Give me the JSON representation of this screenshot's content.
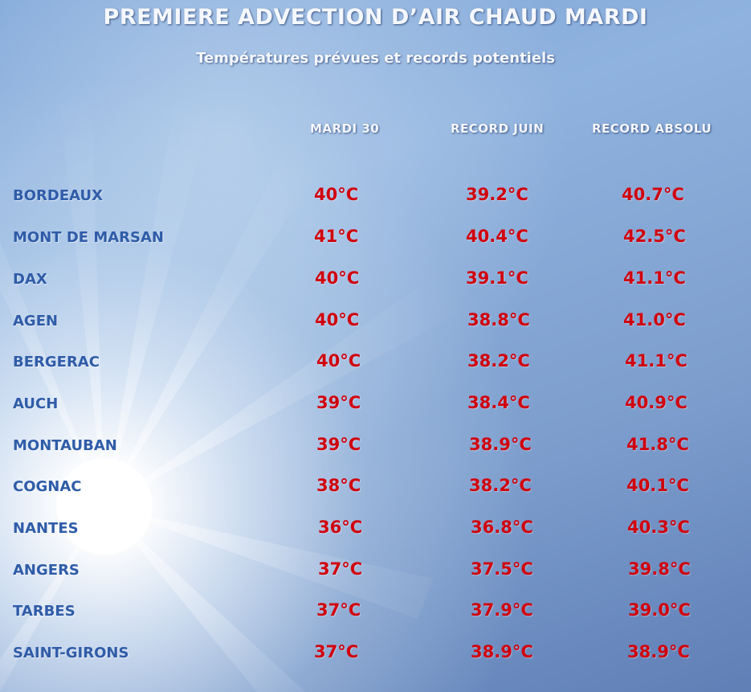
{
  "title": "PREMIERE ADVECTION D’AIR CHAUD MARDI",
  "subtitle": "Températures prévues et records potentiels",
  "columns": [
    "MARDI 30",
    "RECORD JUIN",
    "RECORD ABSOLU"
  ],
  "colors": {
    "title": "#f4f7fc",
    "city": "#2f5ca8",
    "value": "#d0000d"
  },
  "background_icon": "sun-glare",
  "rows": [
    {
      "city": "BORDEAUX",
      "mardi": "40°C",
      "record_juin": "39.2°C",
      "record_absolu": "40.7°C"
    },
    {
      "city": "MONT DE MARSAN",
      "mardi": "41°C",
      "record_juin": "40.4°C",
      "record_absolu": "42.5°C"
    },
    {
      "city": "DAX",
      "mardi": "40°C",
      "record_juin": "39.1°C",
      "record_absolu": "41.1°C"
    },
    {
      "city": "AGEN",
      "mardi": "40°C",
      "record_juin": "38.8°C",
      "record_absolu": "41.0°C"
    },
    {
      "city": "BERGERAC",
      "mardi": "40°C",
      "record_juin": "38.2°C",
      "record_absolu": "41.1°C"
    },
    {
      "city": "AUCH",
      "mardi": "39°C",
      "record_juin": "38.4°C",
      "record_absolu": "40.9°C"
    },
    {
      "city": "MONTAUBAN",
      "mardi": "39°C",
      "record_juin": "38.9°C",
      "record_absolu": "41.8°C"
    },
    {
      "city": "COGNAC",
      "mardi": "38°C",
      "record_juin": "38.2°C",
      "record_absolu": "40.1°C"
    },
    {
      "city": "NANTES",
      "mardi": "36°C",
      "record_juin": "36.8°C",
      "record_absolu": "40.3°C"
    },
    {
      "city": "ANGERS",
      "mardi": "37°C",
      "record_juin": "37.5°C",
      "record_absolu": "39.8°C"
    },
    {
      "city": "TARBES",
      "mardi": "37°C",
      "record_juin": "37.9°C",
      "record_absolu": "39.0°C"
    },
    {
      "city": "SAINT-GIRONS",
      "mardi": "37°C",
      "record_juin": "38.9°C",
      "record_absolu": "38.9°C"
    }
  ]
}
